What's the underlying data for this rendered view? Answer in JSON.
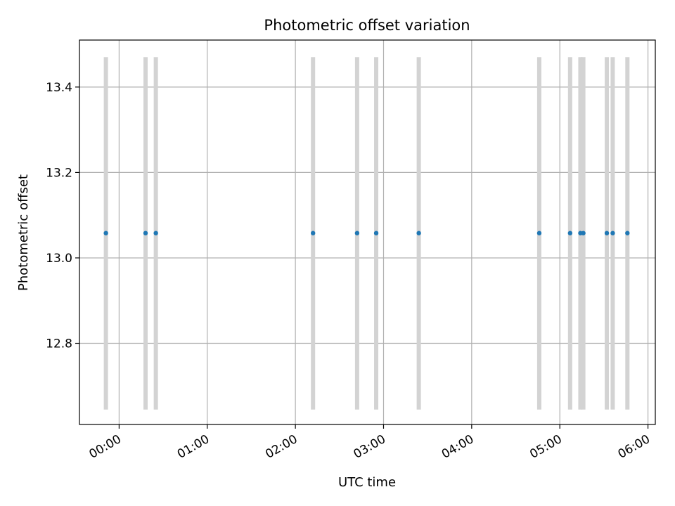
{
  "chart_data": {
    "type": "scatter",
    "title": "Photometric offset variation",
    "xlabel": "UTC time",
    "ylabel": "Photometric offset",
    "x_unit": "time of day (HH:MM)",
    "xlim": [
      "23:33",
      "06:05"
    ],
    "ylim": [
      12.61,
      13.51
    ],
    "x_ticks": [
      "00:00",
      "01:00",
      "02:00",
      "03:00",
      "04:00",
      "05:00",
      "06:00"
    ],
    "y_ticks": [
      12.8,
      13.0,
      13.2,
      13.4
    ],
    "y_tick_labels": [
      "12.8",
      "13.0",
      "13.2",
      "13.4"
    ],
    "grid": true,
    "band_range": [
      12.645,
      13.47
    ],
    "colors": {
      "point": "#1f77b4",
      "band": "#d3d3d3",
      "grid": "#b0b0b0"
    },
    "points": [
      {
        "x": "23:51",
        "y": 13.058
      },
      {
        "x": "00:18",
        "y": 13.058
      },
      {
        "x": "00:25",
        "y": 13.058
      },
      {
        "x": "02:12",
        "y": 13.058
      },
      {
        "x": "02:42",
        "y": 13.058
      },
      {
        "x": "02:55",
        "y": 13.058
      },
      {
        "x": "03:24",
        "y": 13.058
      },
      {
        "x": "04:46",
        "y": 13.058
      },
      {
        "x": "05:07",
        "y": 13.058
      },
      {
        "x": "05:14",
        "y": 13.058
      },
      {
        "x": "05:16",
        "y": 13.058
      },
      {
        "x": "05:32",
        "y": 13.058
      },
      {
        "x": "05:36",
        "y": 13.058
      },
      {
        "x": "05:46",
        "y": 13.058
      }
    ]
  }
}
